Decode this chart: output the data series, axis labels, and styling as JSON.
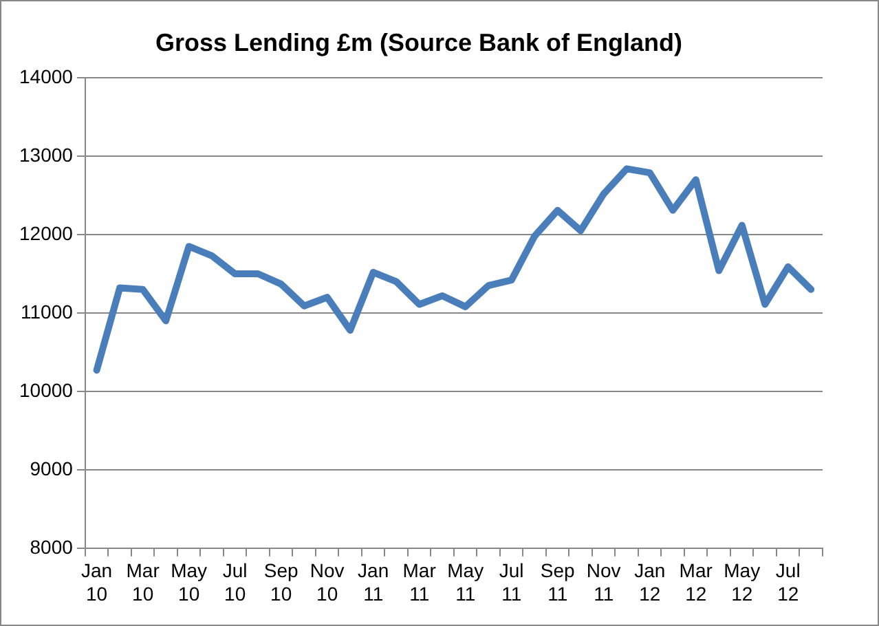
{
  "chart_data": {
    "type": "line",
    "title": "Gross Lending £m (Source Bank of England)",
    "categories": [
      "Jan 10",
      null,
      "Mar 10",
      null,
      "May 10",
      null,
      "Jul 10",
      null,
      "Sep 10",
      null,
      "Nov 10",
      null,
      "Jan 11",
      null,
      "Mar 11",
      null,
      "May 11",
      null,
      "Jul 11",
      null,
      "Sep 11",
      null,
      "Nov 11",
      null,
      "Jan 12",
      null,
      "Mar 12",
      null,
      "May 12",
      null,
      "Jul 12",
      null
    ],
    "series": [
      {
        "color": "#4a7ebb",
        "values": [
          10270,
          11320,
          11300,
          10900,
          11850,
          11730,
          11500,
          11500,
          11370,
          11090,
          11200,
          10780,
          11520,
          11400,
          11110,
          11220,
          11080,
          11350,
          11420,
          11980,
          12310,
          12050,
          12520,
          12840,
          12790,
          12310,
          12700,
          11540,
          12120,
          11110,
          11590,
          11300
        ]
      }
    ],
    "ylim": [
      8000,
      14000
    ],
    "yticks": [
      8000,
      9000,
      10000,
      11000,
      12000,
      13000,
      14000
    ],
    "grid": "y",
    "legend": false,
    "marker": "none",
    "line_style": "solid"
  }
}
